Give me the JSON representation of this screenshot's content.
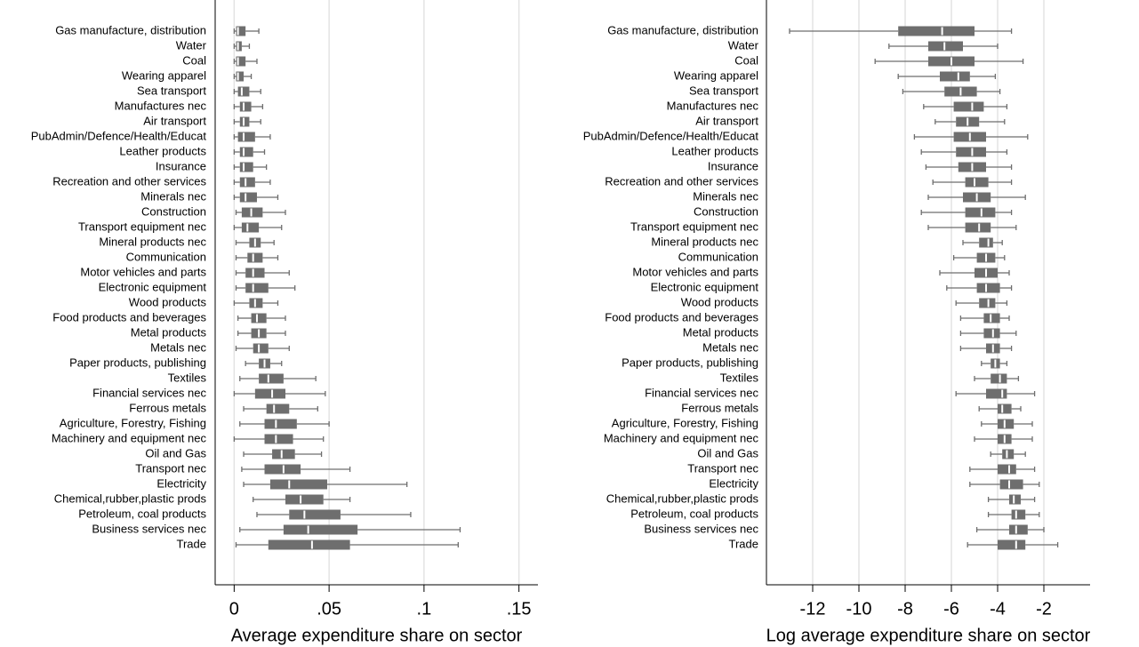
{
  "chart_data": [
    {
      "type": "box",
      "xlabel": "Average expenditure share on sector",
      "color": "#6e6e6e",
      "median_color": "#ffffff",
      "grid": true,
      "xlim": [
        -0.01,
        0.16
      ],
      "xticks": [
        0,
        {
          "value": 0.05,
          "label": ".05"
        },
        {
          "value": 0.1,
          "label": ".1"
        },
        {
          "value": 0.15,
          "label": ".15"
        }
      ],
      "categories": [
        "Gas manufacture, distribution",
        "Water",
        "Coal",
        "Wearing apparel",
        "Sea transport",
        "Manufactures nec",
        "Air transport",
        "PubAdmin/Defence/Health/Educat",
        "Leather products",
        "Insurance",
        "Recreation and other services",
        "Minerals nec",
        "Construction",
        "Transport equipment nec",
        "Mineral products nec",
        "Communication",
        "Motor vehicles and parts",
        "Electronic equipment",
        "Wood products",
        "Food products and beverages",
        "Metal products",
        "Metals nec",
        "Paper products, publishing",
        "Textiles",
        "Financial services nec",
        "Ferrous metals",
        "Agriculture, Forestry, Fishing",
        "Machinery and equipment nec",
        "Oil and Gas",
        "Transport nec",
        "Electricity",
        "Chemical,rubber,plastic prods",
        "Petroleum, coal products",
        "Business services nec",
        "Trade"
      ],
      "boxes": [
        [
          0,
          0.001,
          0.002,
          0.006,
          0.013
        ],
        [
          0,
          0.001,
          0.002,
          0.004,
          0.008
        ],
        [
          0,
          0.001,
          0.002,
          0.006,
          0.012
        ],
        [
          0,
          0.001,
          0.002,
          0.005,
          0.009
        ],
        [
          0,
          0.002,
          0.004,
          0.008,
          0.014
        ],
        [
          0,
          0.003,
          0.005,
          0.009,
          0.015
        ],
        [
          0,
          0.003,
          0.005,
          0.008,
          0.014
        ],
        [
          0,
          0.002,
          0.005,
          0.011,
          0.019
        ],
        [
          0,
          0.003,
          0.005,
          0.01,
          0.016
        ],
        [
          0,
          0.003,
          0.005,
          0.01,
          0.017
        ],
        [
          0,
          0.003,
          0.006,
          0.011,
          0.019
        ],
        [
          0,
          0.003,
          0.006,
          0.012,
          0.023
        ],
        [
          0.001,
          0.004,
          0.009,
          0.015,
          0.027
        ],
        [
          0,
          0.004,
          0.007,
          0.013,
          0.025
        ],
        [
          0.001,
          0.008,
          0.011,
          0.014,
          0.021
        ],
        [
          0.001,
          0.007,
          0.01,
          0.015,
          0.023
        ],
        [
          0.001,
          0.006,
          0.01,
          0.016,
          0.029
        ],
        [
          0.001,
          0.006,
          0.01,
          0.018,
          0.032
        ],
        [
          0,
          0.008,
          0.011,
          0.015,
          0.023
        ],
        [
          0.002,
          0.009,
          0.012,
          0.017,
          0.027
        ],
        [
          0.002,
          0.009,
          0.013,
          0.017,
          0.027
        ],
        [
          0.001,
          0.01,
          0.013,
          0.018,
          0.029
        ],
        [
          0.006,
          0.013,
          0.016,
          0.019,
          0.025
        ],
        [
          0.003,
          0.013,
          0.018,
          0.026,
          0.043
        ],
        [
          0,
          0.011,
          0.02,
          0.027,
          0.048
        ],
        [
          0.005,
          0.017,
          0.021,
          0.029,
          0.044
        ],
        [
          0.003,
          0.016,
          0.022,
          0.033,
          0.05
        ],
        [
          0,
          0.016,
          0.022,
          0.031,
          0.047
        ],
        [
          0.005,
          0.02,
          0.025,
          0.032,
          0.046
        ],
        [
          0.004,
          0.016,
          0.026,
          0.035,
          0.061
        ],
        [
          0.005,
          0.019,
          0.029,
          0.049,
          0.091
        ],
        [
          0.01,
          0.027,
          0.035,
          0.047,
          0.061
        ],
        [
          0.012,
          0.029,
          0.037,
          0.056,
          0.093
        ],
        [
          0.003,
          0.026,
          0.039,
          0.065,
          0.119
        ],
        [
          0.001,
          0.018,
          0.041,
          0.061,
          0.118
        ]
      ]
    },
    {
      "type": "box",
      "xlabel": "Log average expenditure share on sector",
      "color": "#6e6e6e",
      "median_color": "#ffffff",
      "grid": true,
      "xlim": [
        -14,
        0
      ],
      "xticks": [
        -12,
        -10,
        -8,
        -6,
        -4,
        -2
      ],
      "categories": [
        "Gas manufacture, distribution",
        "Water",
        "Coal",
        "Wearing apparel",
        "Sea transport",
        "Manufactures nec",
        "Air transport",
        "PubAdmin/Defence/Health/Educat",
        "Leather products",
        "Insurance",
        "Recreation and other services",
        "Minerals nec",
        "Construction",
        "Transport equipment nec",
        "Mineral products nec",
        "Communication",
        "Motor vehicles and parts",
        "Electronic equipment",
        "Wood products",
        "Food products and beverages",
        "Metal products",
        "Metals nec",
        "Paper products, publishing",
        "Textiles",
        "Financial services nec",
        "Ferrous metals",
        "Agriculture, Forestry, Fishing",
        "Machinery and equipment nec",
        "Oil and Gas",
        "Transport nec",
        "Electricity",
        "Chemical,rubber,plastic prods",
        "Petroleum, coal products",
        "Business services nec",
        "Trade"
      ],
      "boxes": [
        [
          -13,
          -8.3,
          -6.4,
          -5.0,
          -3.4
        ],
        [
          -8.7,
          -7.0,
          -6.3,
          -5.5,
          -4.0
        ],
        [
          -9.3,
          -7.0,
          -6.0,
          -5.0,
          -2.9
        ],
        [
          -8.3,
          -6.5,
          -5.7,
          -5.2,
          -4.1
        ],
        [
          -8.1,
          -6.3,
          -5.6,
          -4.9,
          -3.9
        ],
        [
          -7.2,
          -5.9,
          -5.1,
          -4.6,
          -3.6
        ],
        [
          -6.7,
          -5.8,
          -5.3,
          -4.8,
          -3.7
        ],
        [
          -7.6,
          -5.9,
          -5.2,
          -4.5,
          -2.7
        ],
        [
          -7.3,
          -5.8,
          -5.1,
          -4.5,
          -3.6
        ],
        [
          -7.1,
          -5.7,
          -5.1,
          -4.5,
          -3.4
        ],
        [
          -6.8,
          -5.4,
          -5.0,
          -4.4,
          -3.4
        ],
        [
          -7.0,
          -5.5,
          -4.9,
          -4.3,
          -2.8
        ],
        [
          -7.3,
          -5.4,
          -4.7,
          -4.1,
          -3.4
        ],
        [
          -7.0,
          -5.4,
          -4.8,
          -4.3,
          -3.2
        ],
        [
          -5.5,
          -4.8,
          -4.4,
          -4.2,
          -3.8
        ],
        [
          -5.9,
          -4.9,
          -4.5,
          -4.1,
          -3.7
        ],
        [
          -6.5,
          -5.0,
          -4.5,
          -4.0,
          -3.5
        ],
        [
          -6.2,
          -4.9,
          -4.5,
          -3.9,
          -3.4
        ],
        [
          -5.8,
          -4.8,
          -4.4,
          -4.1,
          -3.6
        ],
        [
          -5.6,
          -4.6,
          -4.3,
          -3.9,
          -3.5
        ],
        [
          -5.6,
          -4.6,
          -4.2,
          -3.9,
          -3.2
        ],
        [
          -5.6,
          -4.5,
          -4.2,
          -3.9,
          -3.4
        ],
        [
          -4.7,
          -4.3,
          -4.1,
          -3.9,
          -3.6
        ],
        [
          -5.0,
          -4.3,
          -3.9,
          -3.6,
          -3.1
        ],
        [
          -5.8,
          -4.5,
          -3.8,
          -3.6,
          -2.4
        ],
        [
          -4.8,
          -4.0,
          -3.8,
          -3.4,
          -3.0
        ],
        [
          -4.7,
          -4.0,
          -3.7,
          -3.3,
          -2.5
        ],
        [
          -5.0,
          -4.0,
          -3.7,
          -3.4,
          -2.5
        ],
        [
          -4.3,
          -3.8,
          -3.6,
          -3.3,
          -2.8
        ],
        [
          -5.2,
          -4.0,
          -3.5,
          -3.2,
          -2.4
        ],
        [
          -5.2,
          -3.9,
          -3.5,
          -2.9,
          -2.2
        ],
        [
          -4.4,
          -3.5,
          -3.3,
          -3.0,
          -2.4
        ],
        [
          -4.4,
          -3.4,
          -3.2,
          -2.8,
          -2.2
        ],
        [
          -4.9,
          -3.5,
          -3.2,
          -2.7,
          -2.0
        ],
        [
          -5.3,
          -4.0,
          -3.2,
          -2.8,
          -1.4
        ]
      ]
    }
  ]
}
